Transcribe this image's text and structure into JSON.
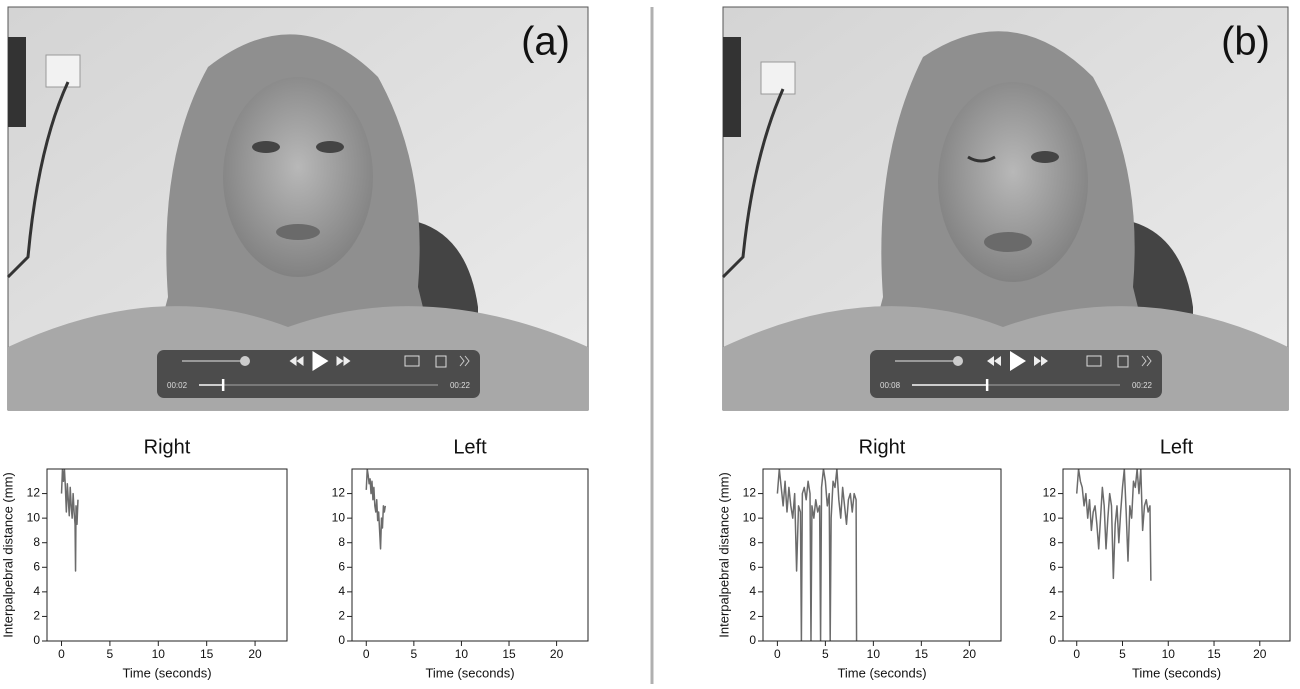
{
  "panels": [
    {
      "label": "(a)",
      "player": {
        "elapsed": "00:02",
        "duration": "00:22"
      }
    },
    {
      "label": "(b)",
      "player": {
        "elapsed": "00:08",
        "duration": "00:22"
      }
    }
  ],
  "chart_data": [
    {
      "type": "line",
      "title": "Right",
      "xlabel": "Time (seconds)",
      "ylabel": "Interpalpebral distance (mm)",
      "color": "#6b6b6b",
      "x": [
        0,
        0.1,
        0.2,
        0.3,
        0.4,
        0.5,
        0.6,
        0.7,
        0.8,
        0.9,
        1.0,
        1.1,
        1.2,
        1.3,
        1.4,
        1.45,
        1.5,
        1.6,
        1.7
      ],
      "values": [
        12,
        14,
        13,
        14,
        12.5,
        10.5,
        12.8,
        11.5,
        10.2,
        12.5,
        11,
        10,
        12,
        10.5,
        9.5,
        5.7,
        11,
        9.5,
        11.5
      ],
      "xlim": [
        -1.5,
        23.3
      ],
      "ylim": [
        0,
        14
      ],
      "xticks": [
        0,
        5,
        10,
        15,
        20
      ],
      "yticks": [
        0,
        2,
        4,
        6,
        8,
        10,
        12
      ]
    },
    {
      "type": "line",
      "title": "Left",
      "xlabel": "Time (seconds)",
      "color": "#6b6b6b",
      "x": [
        0,
        0.1,
        0.2,
        0.3,
        0.4,
        0.5,
        0.6,
        0.7,
        0.8,
        0.9,
        1.0,
        1.1,
        1.2,
        1.3,
        1.4,
        1.5,
        1.6,
        1.7,
        1.8,
        1.9,
        2.0
      ],
      "values": [
        12.3,
        14,
        13.5,
        12.8,
        13.2,
        12,
        13,
        11.5,
        12.5,
        11,
        10.5,
        11.5,
        9.8,
        10.5,
        9,
        7.5,
        10,
        9.2,
        11,
        10.5,
        11
      ],
      "xlim": [
        -1.5,
        23.3
      ],
      "ylim": [
        0,
        14
      ],
      "xticks": [
        0,
        5,
        10,
        15,
        20
      ],
      "yticks": [
        0,
        2,
        4,
        6,
        8,
        10,
        12
      ]
    },
    {
      "type": "line",
      "title": "Right",
      "xlabel": "Time (seconds)",
      "ylabel": "Interpalpebral distance (mm)",
      "color": "#6b6b6b",
      "x": [
        0,
        0.2,
        0.4,
        0.6,
        0.8,
        1.0,
        1.2,
        1.4,
        1.6,
        1.8,
        2.0,
        2.2,
        2.4,
        2.5,
        2.6,
        2.8,
        3.0,
        3.2,
        3.4,
        3.5,
        3.6,
        3.8,
        4.0,
        4.2,
        4.4,
        4.5,
        4.6,
        4.8,
        5.0,
        5.2,
        5.4,
        5.5,
        5.6,
        5.8,
        6.0,
        6.2,
        6.4,
        6.6,
        6.8,
        7.0,
        7.2,
        7.4,
        7.6,
        7.8,
        8.0,
        8.2,
        8.25
      ],
      "values": [
        12,
        14,
        12.5,
        11,
        13,
        10.5,
        12.5,
        11,
        10,
        12,
        5.7,
        11,
        10.5,
        0,
        12,
        12.5,
        11.5,
        13,
        12,
        0,
        11,
        10,
        11.5,
        10.5,
        11,
        0,
        12.5,
        14,
        13,
        11,
        12,
        0,
        10,
        13,
        12.5,
        14,
        11.5,
        10,
        12.5,
        11,
        9.5,
        11.5,
        12,
        10.5,
        12,
        11.5,
        0
      ],
      "xlim": [
        -1.5,
        23.3
      ],
      "ylim": [
        0,
        14
      ],
      "xticks": [
        0,
        5,
        10,
        15,
        20
      ],
      "yticks": [
        0,
        2,
        4,
        6,
        8,
        10,
        12
      ]
    },
    {
      "type": "line",
      "title": "Left",
      "xlabel": "Time (seconds)",
      "color": "#6b6b6b",
      "x": [
        0,
        0.2,
        0.4,
        0.6,
        0.8,
        1.0,
        1.2,
        1.4,
        1.6,
        1.8,
        2.0,
        2.2,
        2.4,
        2.6,
        2.8,
        3.0,
        3.2,
        3.4,
        3.6,
        3.8,
        4.0,
        4.2,
        4.4,
        4.6,
        4.8,
        5.0,
        5.2,
        5.4,
        5.6,
        5.8,
        6.0,
        6.2,
        6.4,
        6.6,
        6.8,
        7.0,
        7.2,
        7.4,
        7.6,
        7.8,
        8.0,
        8.1
      ],
      "values": [
        12,
        14,
        13,
        12.5,
        11,
        12,
        10,
        11.5,
        9,
        10.5,
        11,
        9.5,
        7.5,
        10,
        12.5,
        11,
        7.5,
        10,
        12,
        11,
        5.1,
        9.5,
        11,
        8,
        10.5,
        12.5,
        14,
        10.5,
        6.5,
        11,
        10,
        13,
        12.5,
        14,
        12,
        14,
        9,
        11,
        11.5,
        10.5,
        11,
        4.9
      ],
      "xlim": [
        -1.5,
        23.3
      ],
      "ylim": [
        0,
        14
      ],
      "xticks": [
        0,
        5,
        10,
        15,
        20
      ],
      "yticks": [
        0,
        2,
        4,
        6,
        8,
        10,
        12
      ]
    }
  ]
}
